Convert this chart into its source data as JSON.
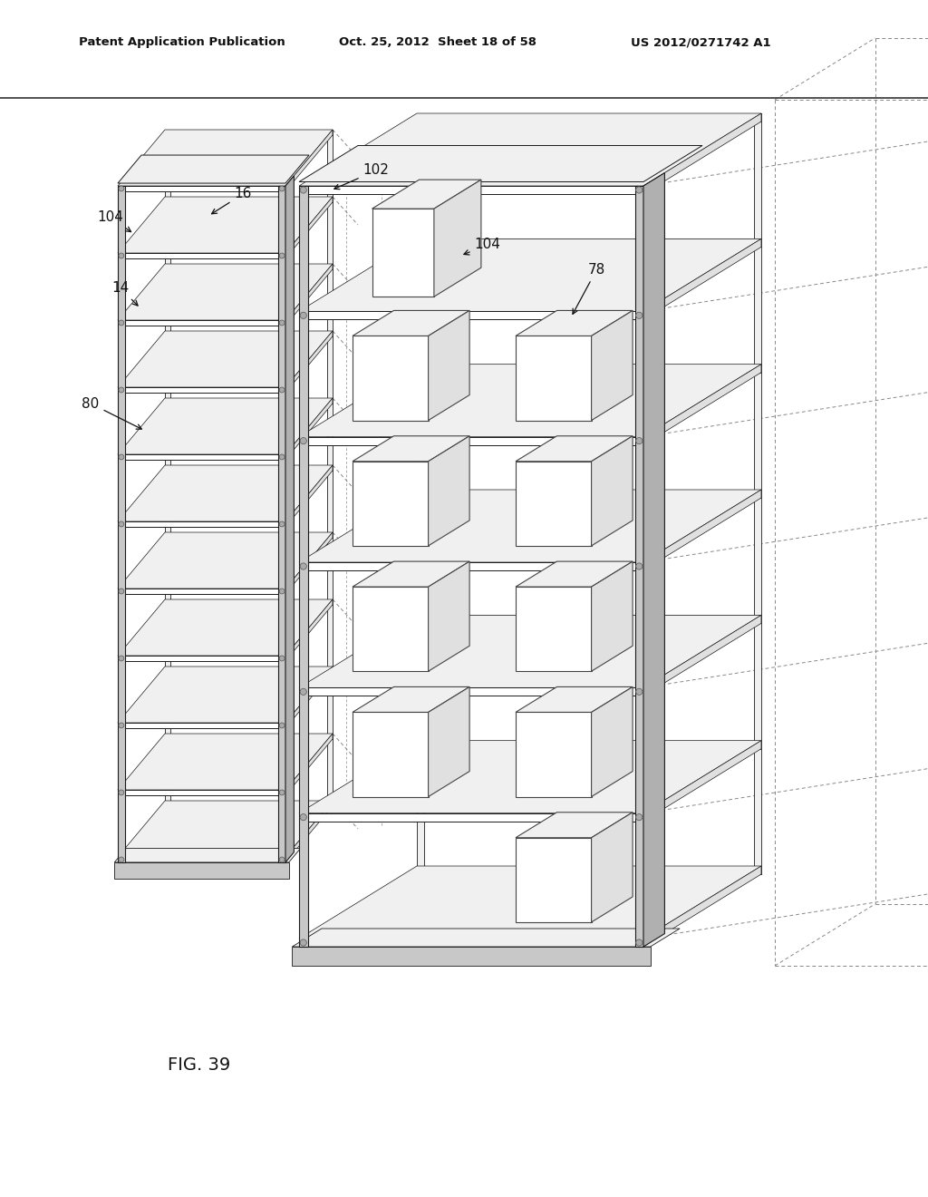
{
  "title_line1": "Patent Application Publication",
  "title_line2": "Oct. 25, 2012  Sheet 18 of 58",
  "title_line3": "US 2012/0271742 A1",
  "fig_label": "FIG. 39",
  "bg_color": "#ffffff",
  "line_color": "#1a1a1a",
  "face_white": "#ffffff",
  "face_light": "#f0f0f0",
  "face_mid": "#e0e0e0",
  "face_dark": "#c8c8c8",
  "face_darkest": "#b0b0b0"
}
